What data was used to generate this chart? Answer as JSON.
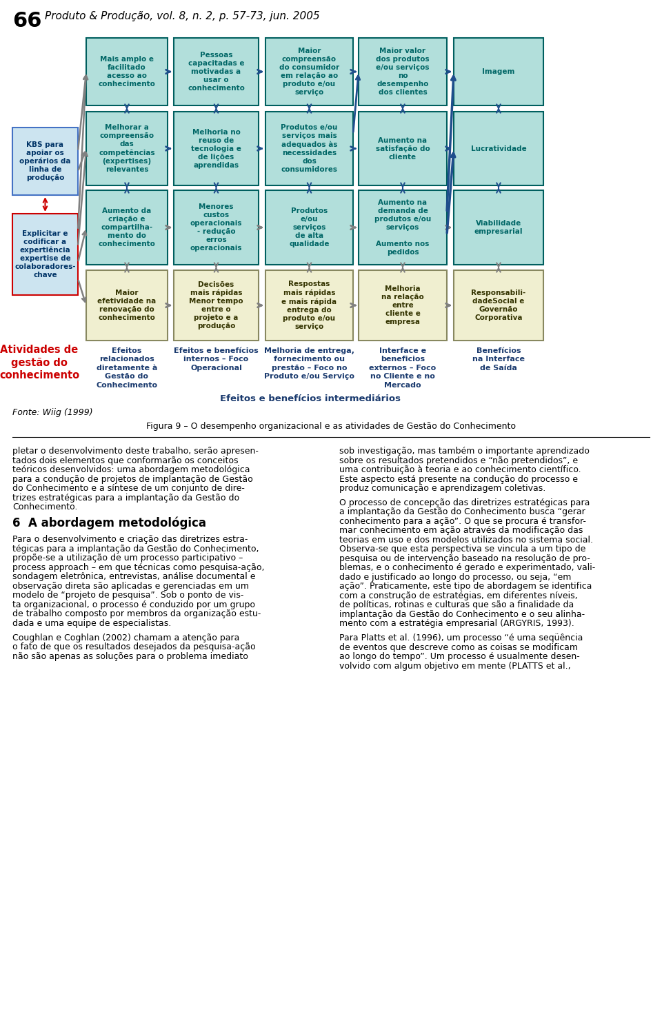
{
  "page_number": "66",
  "header": "Produto & Produção, vol. 8, n. 2, p. 57-73, jun. 2005",
  "figure_caption": "Figura 9 – O desempenho organizacional e as atividades de Gestão do Conhecimento",
  "source_text": "Fonte: Wiig (1999)",
  "efeitos_intermediarios": "Efeitos e benefícios intermediários",
  "left_label": "Atividades de\ngestão do\nconhecimento",
  "col_labels": [
    "Efeitos\nrelacionados\ndiretamente à\nGestão do\nConhecimento",
    "Efeitos e benefícios\ninternos – Foco\nOperacional",
    "Melhoria de entrega,\nfornecimento ou\nprestão – Foco no\nProduto e/ou Serviço",
    "Interface e\nbeneficios\nexternos – Foco\nno Cliente e no\nMercado",
    "Benefícios\nna Interface\nde Saída"
  ],
  "body_lines_left": [
    "pletar o desenvolvimento deste trabalho, serão apresen-",
    "tados dois elementos que conformarão os conceitos",
    "teóricos desenvolvidos: uma abordagem metodológica",
    "para a condução de projetos de implantação de Gestão",
    "do Conhecimento e a síntese de um conjunto de dire-",
    "trizes estratégicas para a implantação da Gestão do",
    "Conhecimento.",
    "",
    "6  A abordagem metodológica",
    "",
    "Para o desenvolvimento e criação das diretrizes estra-",
    "tégicas para a implantação da Gestão do Conhecimento,",
    "propõe-se a utilização de um processo participativo –",
    "process approach – em que técnicas como pesquisa-ação,",
    "sondagem eletrônica, entrevistas, análise documental e",
    "observação direta são aplicadas e gerenciadas em um",
    "modelo de “projeto de pesquisa”. Sob o ponto de vis-",
    "ta organizacional, o processo é conduzido por um grupo",
    "de trabalho composto por membros da organização estu-",
    "dada e uma equipe de especialistas.",
    "",
    "Coughlan e Coghlan (2002) chamam a atenção para",
    "o fato de que os resultados desejados da pesquisa-ação",
    "não são apenas as soluções para o problema imediato"
  ],
  "body_lines_right": [
    "sob investigação, mas também o importante aprendizado",
    "sobre os resultados pretendidos e “não pretendidos”, e",
    "uma contribuição à teoria e ao conhecimento científico.",
    "Este aspecto está presente na condução do processo e",
    "produz comunicação e aprendizagem coletivas.",
    "",
    "O processo de concepção das diretrizes estratégicas para",
    "a implantação da Gestão do Conhecimento busca “gerar",
    "conhecimento para a ação”. O que se procura é transfor-",
    "mar conhecimento em ação através da modificação das",
    "teorias em uso e dos modelos utilizados no sistema social.",
    "Observa-se que esta perspectiva se vincula a um tipo de",
    "pesquisa ou de intervenção baseado na resolução de pro-",
    "blemas, e o conhecimento é gerado e experimentado, vali-",
    "dado e justificado ao longo do processo, ou seja, “em",
    "ação”. Praticamente, este tipo de abordagem se identifica",
    "com a construção de estratégias, em diferentes níveis,",
    "de políticas, rotinas e culturas que são a finalidade da",
    "implantação da Gestão do Conhecimento e o seu alinha-",
    "mento com a estratégia empresarial (ARGYRIS, 1993).",
    "",
    "Para Platts et al. (1996), um processo “é uma seqüência",
    "de eventos que descreve como as coisas se modificam",
    "ao longo do tempo”. Um processo é usualmente desen-",
    "volvido com algum objetivo em mente (PLATTS et al.,"
  ],
  "heading_line": "6  A abordagem metodológica",
  "teal_bg": "#b2dfdb",
  "teal_edge": "#005f5f",
  "cream_bg": "#f0efd0",
  "cream_edge": "#888860",
  "blue_text": "#006666",
  "cream_text": "#333300",
  "arrow_blue": "#1f4e8c",
  "arrow_gray": "#808080",
  "arrow_red": "#cc0000",
  "kbs_bg": "#cce4f0",
  "kbs_edge_blue": "#4472c4",
  "kbs_edge_red": "#cc0000",
  "kbs_text": "#003366",
  "left_label_color": "#cc0000",
  "col_label_color": "#1a3a6e"
}
